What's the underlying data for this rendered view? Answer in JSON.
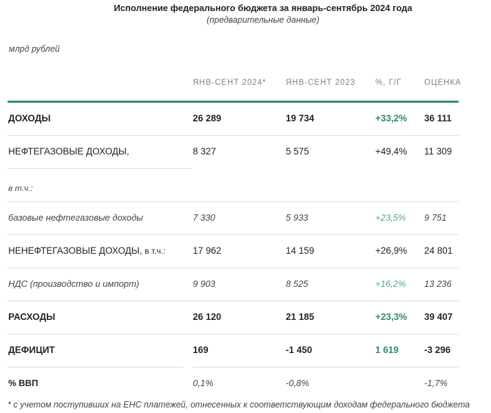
{
  "title": "Исполнение федерального бюджета за январь-сентябрь 2024 года",
  "subtitle": "(предварительные данные)",
  "unit": "млрд рублей",
  "columns": [
    "ЯНВ-СЕНТ 2024*",
    "ЯНВ-СЕНТ 2023",
    "%, Г/Г",
    "ОЦЕНКА"
  ],
  "rows": [
    {
      "label": "ДОХОДЫ",
      "v1": "26 289",
      "v2": "19 734",
      "v3": "+33,2%",
      "v4": "36 111"
    },
    {
      "label": "НЕФТЕГАЗОВЫЕ ДОХОДЫ,",
      "v1": "8 327",
      "v2": "5 575",
      "v3": "+49,4%",
      "v4": "11 309"
    },
    {
      "label": "в т.ч.:",
      "v1": "",
      "v2": "",
      "v3": "",
      "v4": ""
    },
    {
      "label": "базовые нефтегазовые доходы",
      "v1": "7 330",
      "v2": "5 933",
      "v3": "+23,5%",
      "v4": "9 751"
    },
    {
      "label": "НЕНЕФТЕГАЗОВЫЕ ДОХОДЫ,",
      "label_suffix": "в т.ч.:",
      "v1": "17 962",
      "v2": "14 159",
      "v3": "+26,9%",
      "v4": "24 801"
    },
    {
      "label": "НДС (производство и импорт)",
      "v1": "9 903",
      "v2": "8 525",
      "v3": "+16,2%",
      "v4": "13 236"
    },
    {
      "label": "РАСХОДЫ",
      "v1": "26 120",
      "v2": "21 185",
      "v3": "+23,3%",
      "v4": "39 407"
    },
    {
      "label": "ДЕФИЦИТ",
      "v1": "169",
      "v2": "-1 450",
      "v3": "1 619",
      "v4": "-3 296"
    },
    {
      "label": "% ВВП",
      "v1": "0,1%",
      "v2": "-0,8%",
      "v3": "",
      "v4": "-1,7%"
    }
  ],
  "footnote": "* с учетом поступивших на ЕНС платежей, отнесенных к соответствующим доходам федерального бюджета",
  "colors": {
    "accent": "#2f8c69",
    "positive": "#3f9a6b",
    "divider": "#d9dcdf"
  }
}
